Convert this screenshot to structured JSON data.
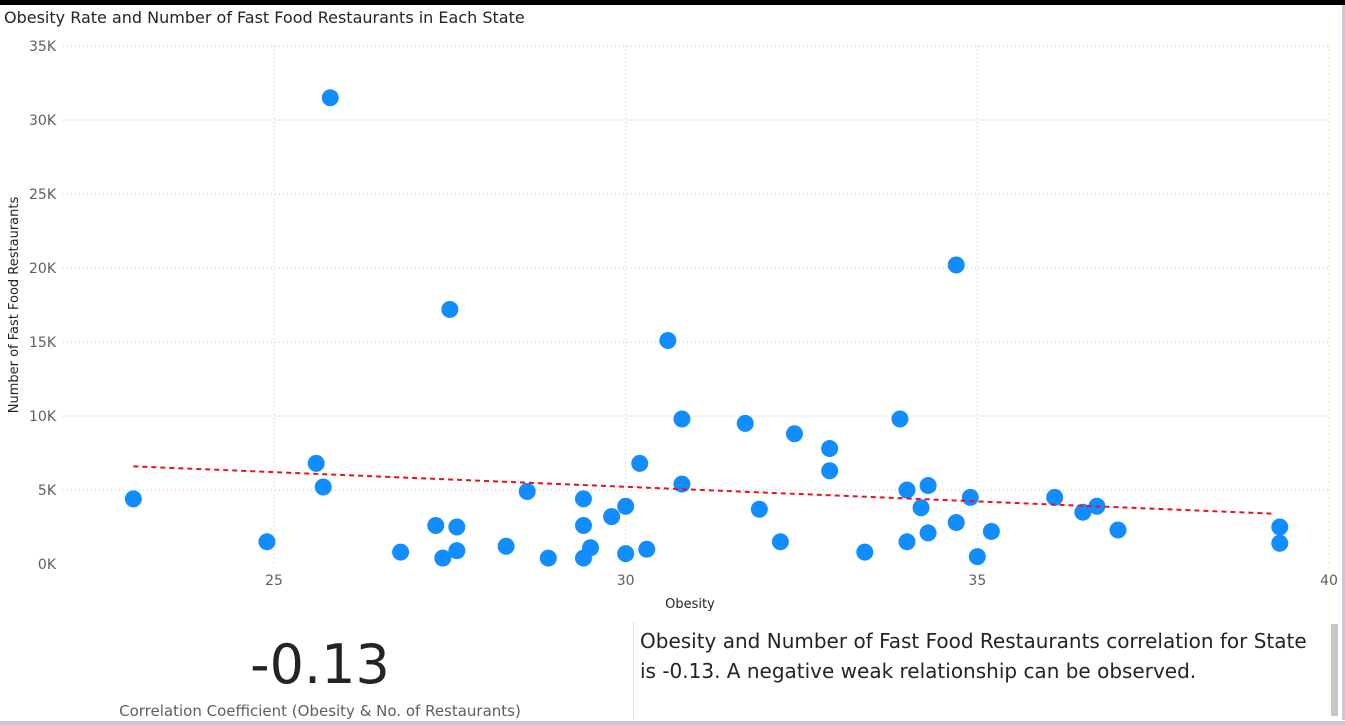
{
  "chart_data": {
    "type": "scatter",
    "title": "Obesity Rate and Number of Fast Food Restaurants in Each State",
    "xlabel": "Obesity",
    "ylabel": "Number of Fast Food Restaurants",
    "xlim": [
      22,
      40
    ],
    "ylim": [
      0,
      35000
    ],
    "x_ticks": [
      "25",
      "30",
      "35",
      "40"
    ],
    "y_ticks": [
      "0K",
      "5K",
      "10K",
      "15K",
      "20K",
      "25K",
      "30K",
      "35K"
    ],
    "grid": true,
    "points": [
      {
        "x": 23.0,
        "y": 4400
      },
      {
        "x": 24.9,
        "y": 1500
      },
      {
        "x": 25.6,
        "y": 6800
      },
      {
        "x": 25.7,
        "y": 5200
      },
      {
        "x": 25.8,
        "y": 31500
      },
      {
        "x": 26.8,
        "y": 800
      },
      {
        "x": 27.3,
        "y": 2600
      },
      {
        "x": 27.4,
        "y": 400
      },
      {
        "x": 27.5,
        "y": 17200
      },
      {
        "x": 27.6,
        "y": 2500
      },
      {
        "x": 27.6,
        "y": 900
      },
      {
        "x": 28.3,
        "y": 1200
      },
      {
        "x": 28.6,
        "y": 4900
      },
      {
        "x": 28.9,
        "y": 400
      },
      {
        "x": 29.4,
        "y": 4400
      },
      {
        "x": 29.4,
        "y": 2600
      },
      {
        "x": 29.4,
        "y": 400
      },
      {
        "x": 29.5,
        "y": 1100
      },
      {
        "x": 29.8,
        "y": 3200
      },
      {
        "x": 30.0,
        "y": 3900
      },
      {
        "x": 30.0,
        "y": 700
      },
      {
        "x": 30.2,
        "y": 6800
      },
      {
        "x": 30.3,
        "y": 1000
      },
      {
        "x": 30.6,
        "y": 15100
      },
      {
        "x": 30.8,
        "y": 9800
      },
      {
        "x": 30.8,
        "y": 5400
      },
      {
        "x": 31.7,
        "y": 9500
      },
      {
        "x": 31.9,
        "y": 3700
      },
      {
        "x": 32.2,
        "y": 1500
      },
      {
        "x": 32.4,
        "y": 8800
      },
      {
        "x": 32.9,
        "y": 7800
      },
      {
        "x": 32.9,
        "y": 6300
      },
      {
        "x": 33.4,
        "y": 800
      },
      {
        "x": 33.9,
        "y": 9800
      },
      {
        "x": 34.0,
        "y": 5000
      },
      {
        "x": 34.0,
        "y": 1500
      },
      {
        "x": 34.2,
        "y": 3800
      },
      {
        "x": 34.3,
        "y": 5300
      },
      {
        "x": 34.3,
        "y": 2100
      },
      {
        "x": 34.7,
        "y": 20200
      },
      {
        "x": 34.7,
        "y": 2800
      },
      {
        "x": 34.9,
        "y": 4500
      },
      {
        "x": 35.0,
        "y": 500
      },
      {
        "x": 35.2,
        "y": 2200
      },
      {
        "x": 36.1,
        "y": 4500
      },
      {
        "x": 36.5,
        "y": 3500
      },
      {
        "x": 36.7,
        "y": 3900
      },
      {
        "x": 37.0,
        "y": 2300
      },
      {
        "x": 39.3,
        "y": 2500
      },
      {
        "x": 39.3,
        "y": 1400
      }
    ],
    "trend_line": {
      "x": [
        23.0,
        39.2
      ],
      "y": [
        6600,
        3400
      ]
    },
    "colors": {
      "points": "#118DFF",
      "trend": "#E81123",
      "grid": "#C8C6C4"
    }
  },
  "kpi": {
    "value": "-0.13",
    "label": "Correlation Coefficient (Obesity & No. of Restaurants)"
  },
  "narrative": {
    "text": "Obesity and Number of Fast Food Restaurants  correlation for State is -0.13. A negative weak relationship can be observed."
  }
}
